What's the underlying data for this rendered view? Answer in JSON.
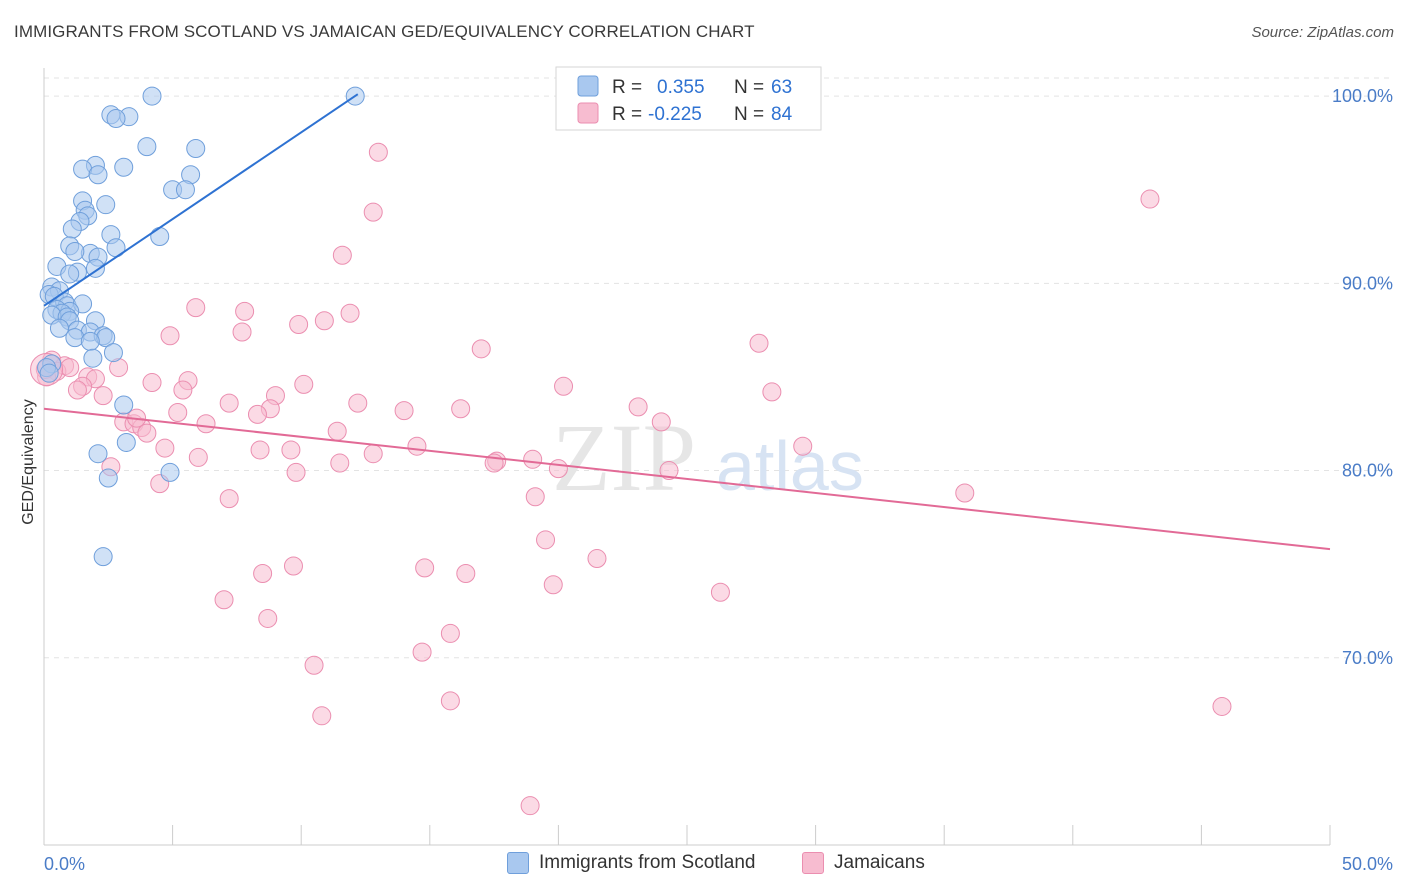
{
  "title": "IMMIGRANTS FROM SCOTLAND VS JAMAICAN GED/EQUIVALENCY CORRELATION CHART",
  "source": "Source: ZipAtlas.com",
  "colors": {
    "blue_fill": "#a9c8ef",
    "blue_stroke": "#6f9fdb",
    "blue_line": "#2e72d2",
    "pink_fill": "#f7bcd0",
    "pink_stroke": "#eb8eb0",
    "pink_line": "#e26a96",
    "axis_text": "#4a7cc7",
    "grid": "#e3e3e3"
  },
  "legend": {
    "r_label": "R =",
    "n_label": "N =",
    "blue": {
      "r": "0.355",
      "n": "63"
    },
    "pink": {
      "r": "-0.225",
      "n": "84"
    }
  },
  "bottom_legend": {
    "blue_label": "Immigrants from Scotland",
    "pink_label": "Jamaicans"
  },
  "watermark": {
    "zip": "ZIP",
    "atlas": "atlas"
  },
  "chart_data": {
    "type": "scatter",
    "title": "IMMIGRANTS FROM SCOTLAND VS JAMAICAN GED/EQUIVALENCY CORRELATION CHART",
    "xlabel": "",
    "ylabel": "GED/Equivalency",
    "xlim": [
      0,
      50
    ],
    "ylim": [
      60,
      101.5
    ],
    "x_tick_labels": [
      "0.0%",
      "50.0%"
    ],
    "y_ticks": [
      70,
      80,
      90,
      100
    ],
    "y_tick_labels": [
      "70.0%",
      "80.0%",
      "90.0%",
      "100.0%"
    ],
    "series": [
      {
        "name": "Immigrants from Scotland",
        "r": 0.355,
        "n": 63,
        "trend": {
          "x": [
            0.0,
            12.2
          ],
          "y": [
            88.8,
            100.1
          ]
        },
        "points": [
          [
            4.2,
            100.0
          ],
          [
            12.1,
            100.0
          ],
          [
            2.6,
            99.0
          ],
          [
            3.3,
            98.9
          ],
          [
            2.8,
            98.8
          ],
          [
            4.0,
            97.3
          ],
          [
            5.9,
            97.2
          ],
          [
            2.0,
            96.3
          ],
          [
            1.5,
            96.1
          ],
          [
            3.1,
            96.2
          ],
          [
            5.7,
            95.8
          ],
          [
            2.1,
            95.8
          ],
          [
            5.0,
            95.0
          ],
          [
            5.5,
            95.0
          ],
          [
            1.5,
            94.4
          ],
          [
            2.4,
            94.2
          ],
          [
            1.6,
            93.9
          ],
          [
            1.7,
            93.6
          ],
          [
            1.4,
            93.3
          ],
          [
            1.1,
            92.9
          ],
          [
            2.6,
            92.6
          ],
          [
            4.5,
            92.5
          ],
          [
            1.0,
            92.0
          ],
          [
            2.8,
            91.9
          ],
          [
            1.8,
            91.6
          ],
          [
            1.2,
            91.7
          ],
          [
            2.1,
            91.4
          ],
          [
            0.5,
            90.9
          ],
          [
            2.0,
            90.8
          ],
          [
            1.3,
            90.6
          ],
          [
            1.0,
            90.5
          ],
          [
            0.3,
            89.8
          ],
          [
            0.6,
            89.6
          ],
          [
            0.2,
            89.4
          ],
          [
            0.4,
            89.3
          ],
          [
            0.8,
            89.0
          ],
          [
            0.9,
            88.8
          ],
          [
            1.5,
            88.9
          ],
          [
            0.5,
            88.6
          ],
          [
            1.0,
            88.5
          ],
          [
            0.7,
            88.4
          ],
          [
            0.3,
            88.3
          ],
          [
            0.9,
            88.2
          ],
          [
            1.0,
            88.0
          ],
          [
            2.0,
            88.0
          ],
          [
            0.6,
            87.6
          ],
          [
            1.3,
            87.5
          ],
          [
            1.8,
            87.4
          ],
          [
            2.3,
            87.2
          ],
          [
            1.2,
            87.1
          ],
          [
            2.4,
            87.1
          ],
          [
            1.8,
            86.9
          ],
          [
            2.7,
            86.3
          ],
          [
            1.9,
            86.0
          ],
          [
            0.3,
            85.7
          ],
          [
            0.1,
            85.5
          ],
          [
            3.1,
            83.5
          ],
          [
            3.2,
            81.5
          ],
          [
            2.1,
            80.9
          ],
          [
            4.9,
            79.9
          ],
          [
            2.5,
            79.6
          ],
          [
            2.3,
            75.4
          ],
          [
            0.2,
            85.2
          ]
        ]
      },
      {
        "name": "Jamaicans",
        "r": -0.225,
        "n": 84,
        "trend": {
          "x": [
            0.0,
            50.0
          ],
          "y": [
            83.3,
            75.8
          ]
        },
        "points": [
          [
            13.0,
            97.0
          ],
          [
            43.0,
            94.5
          ],
          [
            12.8,
            93.8
          ],
          [
            11.6,
            91.5
          ],
          [
            5.9,
            88.7
          ],
          [
            7.8,
            88.5
          ],
          [
            11.9,
            88.4
          ],
          [
            10.9,
            88.0
          ],
          [
            9.9,
            87.8
          ],
          [
            7.7,
            87.4
          ],
          [
            4.9,
            87.2
          ],
          [
            27.8,
            86.8
          ],
          [
            17.0,
            86.5
          ],
          [
            0.3,
            85.9
          ],
          [
            0.8,
            85.6
          ],
          [
            2.9,
            85.5
          ],
          [
            0.5,
            85.3
          ],
          [
            1.7,
            85.0
          ],
          [
            0.1,
            85.0
          ],
          [
            2.0,
            84.9
          ],
          [
            5.6,
            84.8
          ],
          [
            4.2,
            84.7
          ],
          [
            10.1,
            84.6
          ],
          [
            1.5,
            84.5
          ],
          [
            20.2,
            84.5
          ],
          [
            5.4,
            84.3
          ],
          [
            1.3,
            84.3
          ],
          [
            28.3,
            84.2
          ],
          [
            2.3,
            84.0
          ],
          [
            9.0,
            84.0
          ],
          [
            12.2,
            83.6
          ],
          [
            7.2,
            83.6
          ],
          [
            23.1,
            83.4
          ],
          [
            16.2,
            83.3
          ],
          [
            8.8,
            83.3
          ],
          [
            14.0,
            83.2
          ],
          [
            5.2,
            83.1
          ],
          [
            8.3,
            83.0
          ],
          [
            24.0,
            82.6
          ],
          [
            3.1,
            82.6
          ],
          [
            3.5,
            82.5
          ],
          [
            6.3,
            82.5
          ],
          [
            3.8,
            82.3
          ],
          [
            11.4,
            82.1
          ],
          [
            4.0,
            82.0
          ],
          [
            29.5,
            81.3
          ],
          [
            14.5,
            81.3
          ],
          [
            4.7,
            81.2
          ],
          [
            8.4,
            81.1
          ],
          [
            9.6,
            81.1
          ],
          [
            12.8,
            80.9
          ],
          [
            6.0,
            80.7
          ],
          [
            17.6,
            80.5
          ],
          [
            19.0,
            80.6
          ],
          [
            17.5,
            80.4
          ],
          [
            11.5,
            80.4
          ],
          [
            2.6,
            80.2
          ],
          [
            20.0,
            80.1
          ],
          [
            24.3,
            80.0
          ],
          [
            9.8,
            79.9
          ],
          [
            4.5,
            79.3
          ],
          [
            7.2,
            78.5
          ],
          [
            19.1,
            78.6
          ],
          [
            35.8,
            78.8
          ],
          [
            19.5,
            76.3
          ],
          [
            21.5,
            75.3
          ],
          [
            8.5,
            74.5
          ],
          [
            14.8,
            74.8
          ],
          [
            9.7,
            74.9
          ],
          [
            19.8,
            73.9
          ],
          [
            16.4,
            74.5
          ],
          [
            7.0,
            73.1
          ],
          [
            26.3,
            73.5
          ],
          [
            8.7,
            72.1
          ],
          [
            15.8,
            71.3
          ],
          [
            14.7,
            70.3
          ],
          [
            10.5,
            69.6
          ],
          [
            45.8,
            67.4
          ],
          [
            15.8,
            67.7
          ],
          [
            10.8,
            66.9
          ],
          [
            18.9,
            62.1
          ],
          [
            0.05,
            85.4
          ],
          [
            1.0,
            85.5
          ],
          [
            3.6,
            82.8
          ]
        ]
      }
    ]
  }
}
